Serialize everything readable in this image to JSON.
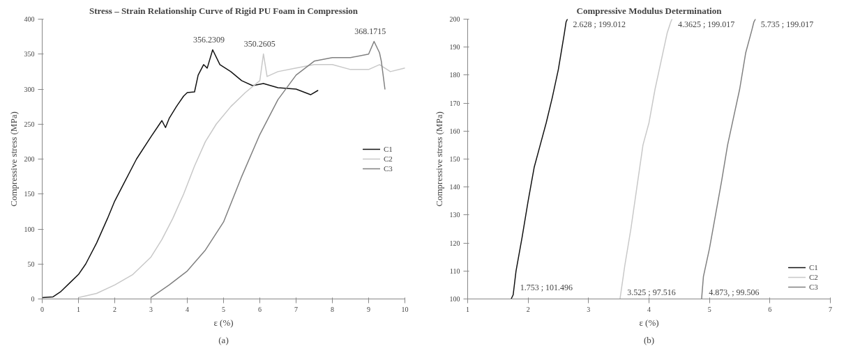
{
  "chart_data": [
    {
      "type": "line",
      "title": "Stress – Strain Relationship Curve of Rigid PU Foam in Compression",
      "xlabel": "ε (%)",
      "ylabel": "Compressive stress (MPa)",
      "xlim": [
        0,
        10
      ],
      "xticks": [
        0,
        1,
        2,
        3,
        4,
        5,
        6,
        7,
        8,
        9,
        10
      ],
      "ylim": [
        0,
        400
      ],
      "yticks": [
        0,
        50,
        100,
        150,
        200,
        250,
        300,
        350,
        400
      ],
      "grid": false,
      "legend": "right",
      "series": [
        {
          "name": "C1",
          "color": "#111111",
          "x": [
            0,
            0.3,
            0.5,
            0.8,
            1,
            1.2,
            1.5,
            1.8,
            2,
            2.3,
            2.6,
            3,
            3.3,
            3.4,
            3.5,
            3.7,
            3.9,
            4.0,
            4.2,
            4.3,
            4.45,
            4.55,
            4.7,
            4.9,
            5.2,
            5.5,
            5.8,
            6.1,
            6.5,
            7,
            7.4,
            7.6
          ],
          "values": [
            2,
            3,
            10,
            25,
            35,
            50,
            80,
            115,
            140,
            170,
            200,
            232,
            255,
            245,
            258,
            275,
            290,
            295,
            296,
            320,
            335,
            330,
            356.2309,
            335,
            325,
            312,
            305,
            308,
            302,
            300,
            292,
            298
          ]
        },
        {
          "name": "C2",
          "color": "#c8c8c8",
          "x": [
            1,
            1.5,
            2,
            2.5,
            3,
            3.3,
            3.6,
            3.9,
            4.2,
            4.5,
            4.8,
            5.2,
            5.6,
            6.0,
            6.1,
            6.2,
            6.5,
            7,
            7.5,
            8,
            8.5,
            9,
            9.3,
            9.6,
            10
          ],
          "values": [
            2,
            8,
            20,
            35,
            60,
            85,
            115,
            150,
            190,
            225,
            250,
            275,
            295,
            312,
            350.2605,
            318,
            325,
            330,
            335,
            335,
            328,
            328,
            335,
            325,
            330
          ]
        },
        {
          "name": "C3",
          "color": "#808080",
          "x": [
            3,
            3.5,
            4,
            4.5,
            5,
            5.5,
            6,
            6.5,
            7,
            7.5,
            8,
            8.5,
            9,
            9.15,
            9.3,
            9.35,
            9.45
          ],
          "values": [
            2,
            20,
            40,
            70,
            110,
            175,
            235,
            285,
            320,
            340,
            345,
            345,
            350,
            368.1715,
            352,
            340,
            300
          ]
        }
      ],
      "annotations": [
        {
          "text": "356.2309",
          "x": 4.7,
          "y": 356.2309
        },
        {
          "text": "350.2605",
          "x": 6.1,
          "y": 350.2605
        },
        {
          "text": "368.1715",
          "x": 9.15,
          "y": 368.1715
        },
        "(a)"
      ]
    },
    {
      "type": "line",
      "title": "Compressive Modulus Determination",
      "xlabel": "ε (%)",
      "ylabel": "Compressive stress (MPa)",
      "xlim": [
        1,
        7
      ],
      "xticks": [
        1,
        2,
        3,
        4,
        5,
        6,
        7
      ],
      "ylim": [
        100,
        200
      ],
      "yticks": [
        100,
        110,
        120,
        130,
        140,
        150,
        160,
        170,
        180,
        190,
        200
      ],
      "grid": false,
      "legend": "bottom right",
      "series": [
        {
          "name": "C1",
          "color": "#111111",
          "x": [
            1.72,
            1.753,
            1.8,
            1.9,
            2.0,
            2.1,
            2.2,
            2.3,
            2.4,
            2.5,
            2.6,
            2.628,
            2.65
          ],
          "values": [
            100,
            101.5,
            110,
            122,
            135,
            147,
            155,
            163,
            172,
            182,
            195,
            199,
            200
          ]
        },
        {
          "name": "C2",
          "color": "#c8c8c8",
          "x": [
            3.52,
            3.6,
            3.7,
            3.8,
            3.9,
            4.0,
            4.1,
            4.2,
            4.3,
            4.36,
            4.38
          ],
          "values": [
            100,
            112,
            125,
            140,
            155,
            163,
            175,
            185,
            195,
            199,
            200
          ]
        },
        {
          "name": "C3",
          "color": "#808080",
          "x": [
            4.87,
            4.9,
            5.0,
            5.1,
            5.2,
            5.3,
            5.4,
            5.5,
            5.6,
            5.7,
            5.735,
            5.76
          ],
          "values": [
            100,
            108,
            118,
            130,
            142,
            155,
            165,
            175,
            188,
            196,
            199,
            200
          ]
        }
      ],
      "annotations": [
        {
          "text": "2.628 ; 199.012",
          "x": 2.628,
          "y": 199.012
        },
        {
          "text": "4.3625 ; 199.017",
          "x": 4.3625,
          "y": 199.017
        },
        {
          "text": "5.735 ; 199.017",
          "x": 5.735,
          "y": 199.017
        },
        {
          "text": "1.753 ; 101.496",
          "x": 1.753,
          "y": 101.496
        },
        {
          "text": "3.525 ; 97.516",
          "x": 3.525
        },
        {
          "text": "4.873, ; 99.506",
          "x": 4.873
        },
        "(b)"
      ]
    }
  ]
}
